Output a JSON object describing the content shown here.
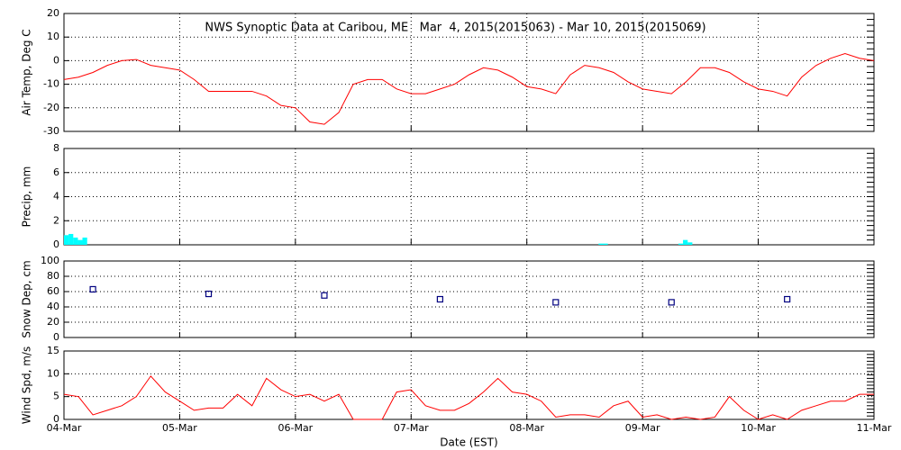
{
  "chart_data": [
    {
      "type": "line",
      "title": "NWS Synoptic Data at Caribou, ME   Mar  4, 2015(2015063) - Mar 10, 2015(2015069)",
      "ylabel": "Air Temp, Deg C",
      "color": "#ff0000",
      "x": [
        0,
        0.125,
        0.25,
        0.375,
        0.5,
        0.625,
        0.75,
        0.875,
        1,
        1.125,
        1.25,
        1.375,
        1.5,
        1.625,
        1.75,
        1.875,
        2,
        2.125,
        2.25,
        2.375,
        2.5,
        2.625,
        2.75,
        2.875,
        3,
        3.125,
        3.25,
        3.375,
        3.5,
        3.625,
        3.75,
        3.875,
        4,
        4.125,
        4.25,
        4.375,
        4.5,
        4.625,
        4.75,
        4.875,
        5,
        5.125,
        5.25,
        5.375,
        5.5,
        5.625,
        5.75,
        5.875,
        6,
        6.125,
        6.25,
        6.375,
        6.5,
        6.625,
        6.75,
        6.875,
        7
      ],
      "values": [
        -8,
        -7,
        -5,
        -2,
        0,
        0.5,
        -2,
        -3,
        -4,
        -8,
        -13,
        -13,
        -13,
        -13,
        -15,
        -19,
        -20,
        -26,
        -27,
        -22,
        -10,
        -8,
        -8,
        -12,
        -14,
        -14,
        -12,
        -10,
        -6,
        -3,
        -4,
        -7,
        -11,
        -12,
        -14,
        -6,
        -2,
        -3,
        -5,
        -9,
        -12,
        -13,
        -14,
        -9,
        -3,
        -3,
        -5,
        -9,
        -12,
        -13,
        -15,
        -7,
        -2,
        1,
        3,
        1,
        0
      ],
      "xlim": [
        0,
        7
      ],
      "xticks": [
        0,
        1,
        2,
        3,
        4,
        5,
        6,
        7
      ],
      "ylim": [
        -30,
        20
      ],
      "yticks": [
        -30,
        -20,
        -10,
        0,
        10,
        20
      ],
      "grid": true
    },
    {
      "type": "bar",
      "ylabel": "Precip, mm",
      "color": "#00ffff",
      "x": [
        0.02,
        0.06,
        0.1,
        0.14,
        0.18,
        4.64,
        4.68,
        5.33,
        5.37,
        5.41
      ],
      "values": [
        0.8,
        0.9,
        0.6,
        0.4,
        0.6,
        0.1,
        0.1,
        0.1,
        0.4,
        0.2
      ],
      "xlim": [
        0,
        7
      ],
      "xticks": [
        0,
        1,
        2,
        3,
        4,
        5,
        6,
        7
      ],
      "ylim": [
        0,
        8
      ],
      "yticks": [
        0,
        2,
        4,
        6,
        8
      ],
      "grid": true
    },
    {
      "type": "scatter",
      "ylabel": "Snow Dep, cm",
      "color": "#000080",
      "x": [
        0.25,
        1.25,
        2.25,
        3.25,
        4.25,
        5.25,
        6.25
      ],
      "values": [
        63,
        57,
        55,
        50,
        46,
        46,
        50
      ],
      "xlim": [
        0,
        7
      ],
      "xticks": [
        0,
        1,
        2,
        3,
        4,
        5,
        6,
        7
      ],
      "ylim": [
        0,
        100
      ],
      "yticks": [
        0,
        20,
        40,
        60,
        80,
        100
      ],
      "grid": true
    },
    {
      "type": "line",
      "ylabel": "Wind Spd, m/s",
      "xlabel": "Date (EST)",
      "color": "#ff0000",
      "x": [
        0,
        0.125,
        0.25,
        0.375,
        0.5,
        0.625,
        0.75,
        0.875,
        1,
        1.125,
        1.25,
        1.375,
        1.5,
        1.625,
        1.75,
        1.875,
        2,
        2.125,
        2.25,
        2.375,
        2.5,
        2.625,
        2.75,
        2.875,
        3,
        3.125,
        3.25,
        3.375,
        3.5,
        3.625,
        3.75,
        3.875,
        4,
        4.125,
        4.25,
        4.375,
        4.5,
        4.625,
        4.75,
        4.875,
        5,
        5.125,
        5.25,
        5.375,
        5.5,
        5.625,
        5.75,
        5.875,
        6,
        6.125,
        6.25,
        6.375,
        6.5,
        6.625,
        6.75,
        6.875,
        7
      ],
      "values": [
        5.5,
        5,
        1,
        2,
        3,
        5,
        9.5,
        6,
        4,
        2,
        2.5,
        2.5,
        5.5,
        3,
        9,
        6.5,
        5,
        5.5,
        4,
        5.5,
        0,
        0,
        0,
        6,
        6.5,
        3,
        2,
        2,
        3.5,
        6,
        9,
        6,
        5.5,
        4,
        0.5,
        1,
        1,
        0.5,
        3,
        4,
        0.5,
        1,
        0,
        0.5,
        0,
        0.5,
        5,
        2,
        0,
        1,
        0,
        2,
        3,
        4,
        4,
        5.5,
        5.5
      ],
      "xlim": [
        0,
        7
      ],
      "xticks": [
        {
          "value": 0,
          "label": "04-Mar"
        },
        {
          "value": 1,
          "label": "05-Mar"
        },
        {
          "value": 2,
          "label": "06-Mar"
        },
        {
          "value": 3,
          "label": "07-Mar"
        },
        {
          "value": 4,
          "label": "08-Mar"
        },
        {
          "value": 5,
          "label": "09-Mar"
        },
        {
          "value": 6,
          "label": "10-Mar"
        },
        {
          "value": 7,
          "label": "11-Mar"
        }
      ],
      "ylim": [
        0,
        15
      ],
      "yticks": [
        0,
        5,
        10,
        15
      ],
      "grid": true
    }
  ]
}
